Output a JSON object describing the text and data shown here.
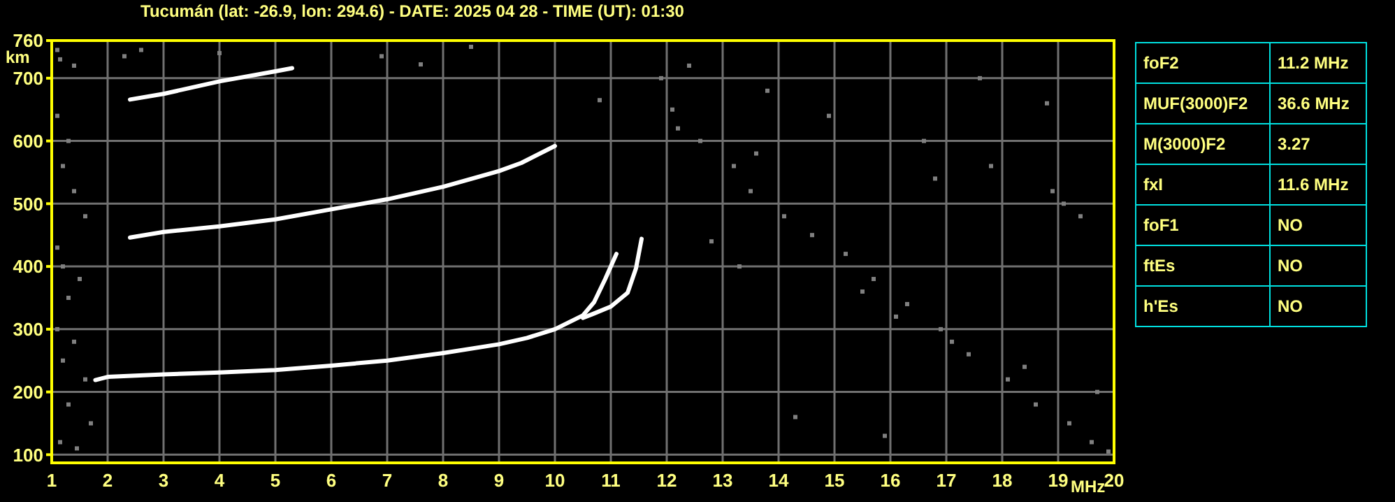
{
  "chart_data": [
    {
      "type": "scatter",
      "title": "Tucumán (lat: -26.9, lon: 294.6) - DATE: 2025 04 28 - TIME (UT): 01:30",
      "xlabel": "MHz",
      "ylabel": "km",
      "xlim": [
        1,
        20
      ],
      "ylim": [
        87,
        760
      ],
      "xticks": [
        1,
        2,
        3,
        4,
        5,
        6,
        7,
        8,
        9,
        10,
        11,
        12,
        13,
        14,
        15,
        16,
        17,
        18,
        19,
        20
      ],
      "yticks": [
        100,
        200,
        300,
        400,
        500,
        600,
        700,
        760
      ],
      "grid": true,
      "legend": false,
      "series": [
        {
          "type": "line",
          "marker": "none",
          "color": "#ffffff",
          "x": [
            1.78,
            2,
            3,
            4,
            5,
            6,
            7,
            8,
            9,
            9.5,
            10,
            10.5,
            10.7,
            10.9,
            11,
            11.1
          ],
          "values": [
            219,
            224,
            228,
            231,
            235,
            242,
            250,
            262,
            276,
            286,
            300,
            322,
            343,
            380,
            400,
            420
          ]
        },
        {
          "type": "line",
          "marker": "none",
          "color": "#ffffff",
          "x": [
            10.5,
            10.7,
            11,
            11.3,
            11.45,
            11.55
          ],
          "values": [
            318,
            325,
            336,
            358,
            397,
            444
          ]
        },
        {
          "type": "line",
          "marker": "none",
          "color": "#ffffff",
          "x": [
            2.4,
            3,
            4,
            5,
            6,
            7,
            8,
            9,
            9.4,
            10
          ],
          "values": [
            446,
            455,
            464,
            475,
            491,
            507,
            527,
            552,
            565,
            592
          ]
        },
        {
          "type": "line",
          "marker": "none",
          "color": "#ffffff",
          "x": [
            2.4,
            3,
            4,
            5,
            5.3
          ],
          "values": [
            666,
            675,
            695,
            711,
            716
          ]
        },
        {
          "type": "scatter",
          "marker": "square",
          "color": "#808080",
          "x": [
            1.1,
            1.15,
            1.4,
            1.1,
            1.3,
            1.2,
            1.4,
            1.6,
            1.1,
            1.2,
            1.5,
            1.3,
            1.1,
            1.4,
            1.2,
            1.6,
            1.3,
            1.7,
            1.15,
            1.45,
            2.3,
            2.6,
            4.0,
            6.9,
            7.6,
            8.5,
            10.8,
            11.9,
            12.1,
            12.6,
            13.2,
            13.5,
            14.1,
            14.6,
            15.2,
            15.7,
            16.3,
            16.9,
            17.4,
            18.1,
            18.6,
            19.2,
            19.6,
            19.9,
            12.4,
            13.8,
            14.9,
            16.6,
            17.8,
            18.9,
            19.4,
            12.8,
            13.3,
            15.5,
            16.1,
            17.1,
            18.4,
            19.7,
            14.3,
            15.9,
            17.6,
            18.8,
            12.2,
            13.6,
            16.8,
            19.1
          ],
          "values": [
            745,
            730,
            720,
            640,
            600,
            560,
            520,
            480,
            430,
            400,
            380,
            350,
            300,
            280,
            250,
            220,
            180,
            150,
            120,
            110,
            735,
            745,
            740,
            735,
            722,
            750,
            665,
            700,
            650,
            600,
            560,
            520,
            480,
            450,
            420,
            380,
            340,
            300,
            260,
            220,
            180,
            150,
            120,
            105,
            720,
            680,
            640,
            600,
            560,
            520,
            480,
            440,
            400,
            360,
            320,
            280,
            240,
            200,
            160,
            130,
            700,
            660,
            620,
            580,
            540,
            500
          ]
        }
      ]
    },
    {
      "type": "other",
      "categories": [
        "foF2",
        "MUF(3000)F2",
        "M(3000)F2",
        "fxI",
        "foF1",
        "ftEs",
        "h'Es"
      ],
      "value_labels": [
        "11.2 MHz",
        "36.6 MHz",
        "3.27",
        "11.6 MHz",
        "NO",
        "NO",
        "NO"
      ]
    }
  ]
}
